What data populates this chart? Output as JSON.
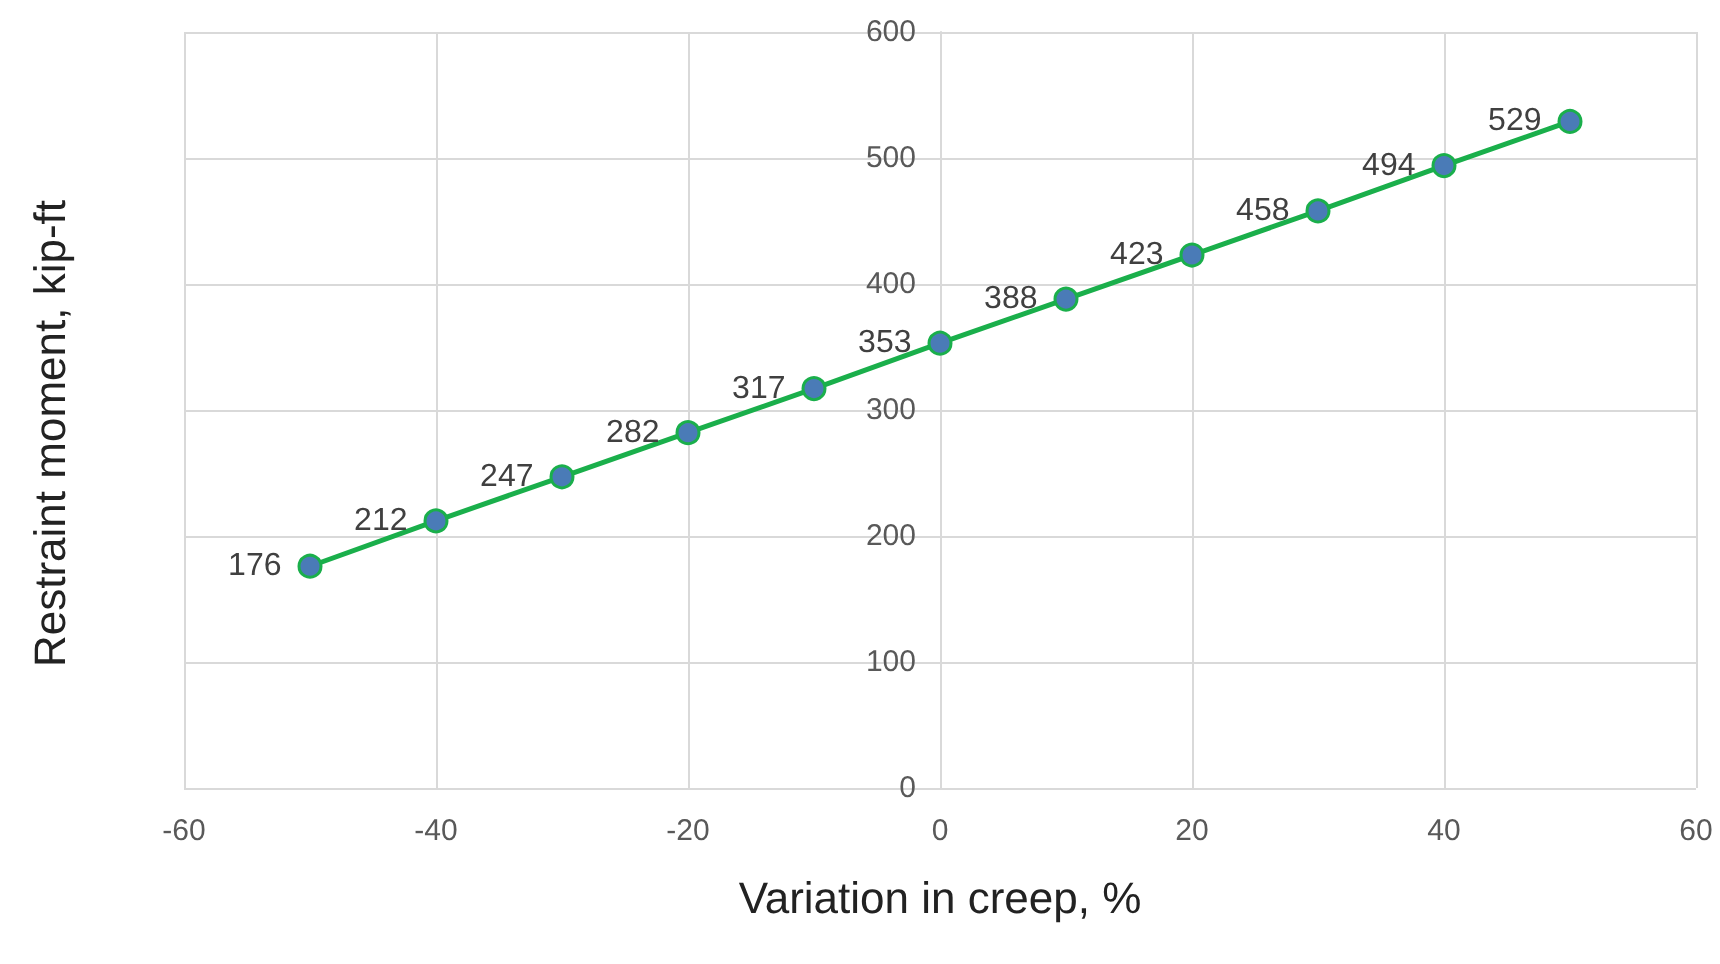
{
  "chart_data": {
    "type": "line",
    "xlabel": "Variation in creep, %",
    "ylabel": "Restraint moment, kip-ft",
    "x": [
      -50,
      -40,
      -30,
      -20,
      -10,
      0,
      10,
      20,
      30,
      40,
      50
    ],
    "series": [
      {
        "color": "#1aaf4b",
        "values": [
          176,
          212,
          247,
          282,
          317,
          353,
          388,
          423,
          458,
          494,
          529
        ]
      }
    ],
    "xlim": [
      -60,
      60
    ],
    "xticks": [
      -60,
      -40,
      -20,
      0,
      20,
      40,
      60
    ],
    "ylim": [
      0,
      600
    ],
    "yticks": [
      0,
      100,
      200,
      300,
      400,
      500,
      600
    ],
    "grid": true,
    "marker": "circle",
    "line_style": "solid",
    "data_labels": true
  }
}
